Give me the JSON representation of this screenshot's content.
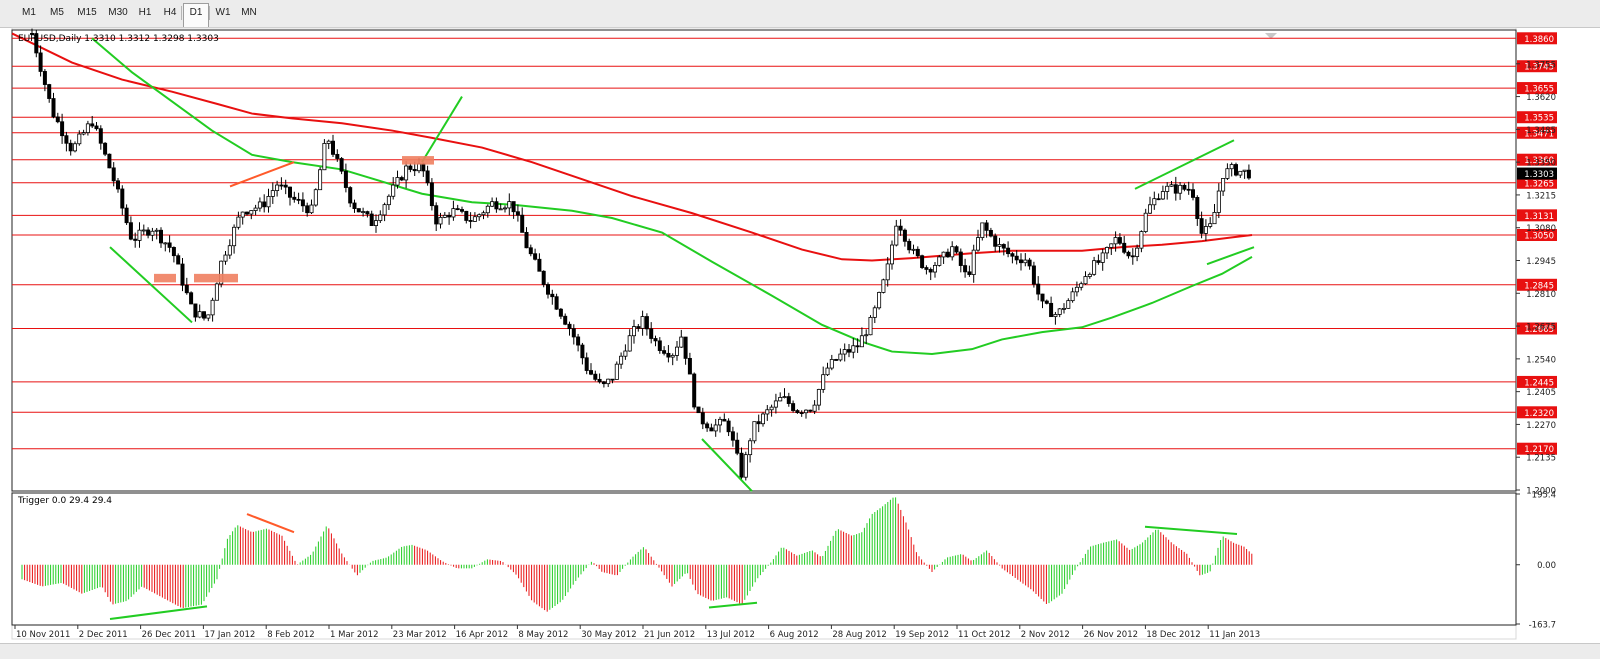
{
  "toolbar": {
    "timeframes": [
      "M1",
      "M5",
      "M15",
      "M30",
      "H1",
      "H4",
      "D1",
      "W1",
      "MN"
    ],
    "active": "D1"
  },
  "chart_header": {
    "symbol_line": "EURUSD,Daily  1.3310 1.3312 1.3298 1.3303"
  },
  "indicator_header": {
    "label": "Trigger 0.0 29.4 29.4"
  },
  "chart_data": [
    {
      "type": "candlestick",
      "symbol": "EURUSD",
      "timeframe": "Daily",
      "ohlc_last": {
        "open": 1.331,
        "high": 1.3312,
        "low": 1.3298,
        "close": 1.3303
      },
      "current_price": "1.3303",
      "y_axis_ticks": [
        "1.3755",
        "1.3620",
        "1.3485",
        "1.3350",
        "1.3215",
        "1.3080",
        "1.2945",
        "1.2810",
        "1.2675",
        "1.2540",
        "1.2405",
        "1.2270",
        "1.2135",
        "1.2000"
      ],
      "ylim": [
        1.2,
        1.389
      ],
      "x_axis_labels": [
        "10 Nov 2011",
        "2 Dec 2011",
        "26 Dec 2011",
        "17 Jan 2012",
        "8 Feb 2012",
        "1 Mar 2012",
        "23 Mar 2012",
        "16 Apr 2012",
        "8 May 2012",
        "30 May 2012",
        "21 Jun 2012",
        "13 Jul 2012",
        "6 Aug 2012",
        "28 Aug 2012",
        "19 Sep 2012",
        "11 Oct 2012",
        "2 Nov 2012",
        "26 Nov 2012",
        "18 Dec 2012",
        "11 Jan 2013"
      ],
      "horizontal_levels": [
        "1.3860",
        "1.3745",
        "1.3655",
        "1.3535",
        "1.3471",
        "1.3360",
        "1.3265",
        "1.3131",
        "1.3050",
        "1.2845",
        "1.2665",
        "1.2445",
        "1.2320",
        "1.2170"
      ],
      "moving_averages": [
        {
          "color": "#e81010",
          "points": [
            [
              0,
              1.388
            ],
            [
              60,
              1.376
            ],
            [
              110,
              1.369
            ],
            [
              160,
              1.364
            ],
            [
              205,
              1.359
            ],
            [
              240,
              1.355
            ],
            [
              280,
              1.353
            ],
            [
              330,
              1.351
            ],
            [
              380,
              1.348
            ],
            [
              420,
              1.345
            ],
            [
              470,
              1.341
            ],
            [
              520,
              1.335
            ],
            [
              570,
              1.328
            ],
            [
              620,
              1.321
            ],
            [
              680,
              1.314
            ],
            [
              740,
              1.306
            ],
            [
              790,
              1.299
            ],
            [
              830,
              1.295
            ],
            [
              860,
              1.2945
            ],
            [
              900,
              1.2955
            ],
            [
              960,
              1.2975
            ],
            [
              1000,
              1.2985
            ],
            [
              1030,
              1.2985
            ],
            [
              1070,
              1.2985
            ],
            [
              1110,
              1.3
            ],
            [
              1150,
              1.301
            ],
            [
              1190,
              1.3025
            ],
            [
              1220,
              1.304
            ],
            [
              1240,
              1.305
            ]
          ]
        },
        {
          "color": "#22cc22",
          "points": [
            [
              80,
              1.386
            ],
            [
              120,
              1.372
            ],
            [
              160,
              1.36
            ],
            [
              200,
              1.348
            ],
            [
              240,
              1.338
            ],
            [
              280,
              1.335
            ],
            [
              330,
              1.332
            ],
            [
              370,
              1.327
            ],
            [
              410,
              1.322
            ],
            [
              460,
              1.3185
            ],
            [
              500,
              1.3175
            ],
            [
              560,
              1.315
            ],
            [
              600,
              1.312
            ],
            [
              650,
              1.306
            ],
            [
              700,
              1.294
            ],
            [
              760,
              1.28
            ],
            [
              810,
              1.268
            ],
            [
              850,
              1.261
            ],
            [
              880,
              1.257
            ],
            [
              920,
              1.256
            ],
            [
              960,
              1.258
            ],
            [
              990,
              1.262
            ],
            [
              1030,
              1.265
            ],
            [
              1070,
              1.267
            ],
            [
              1100,
              1.271
            ],
            [
              1140,
              1.277
            ],
            [
              1180,
              1.284
            ],
            [
              1210,
              1.289
            ],
            [
              1240,
              1.296
            ]
          ]
        }
      ],
      "candle_path": [
        [
          20,
          1.388
        ],
        [
          40,
          1.356
        ],
        [
          60,
          1.34
        ],
        [
          80,
          1.352
        ],
        [
          100,
          1.33
        ],
        [
          120,
          1.303
        ],
        [
          140,
          1.308
        ],
        [
          160,
          1.299
        ],
        [
          180,
          1.274
        ],
        [
          195,
          1.27
        ],
        [
          210,
          1.295
        ],
        [
          230,
          1.315
        ],
        [
          250,
          1.317
        ],
        [
          265,
          1.326
        ],
        [
          280,
          1.32
        ],
        [
          300,
          1.315
        ],
        [
          315,
          1.346
        ],
        [
          325,
          1.335
        ],
        [
          340,
          1.318
        ],
        [
          360,
          1.31
        ],
        [
          380,
          1.323
        ],
        [
          395,
          1.333
        ],
        [
          410,
          1.333
        ],
        [
          425,
          1.31
        ],
        [
          440,
          1.315
        ],
        [
          460,
          1.311
        ],
        [
          480,
          1.318
        ],
        [
          500,
          1.318
        ],
        [
          515,
          1.3
        ],
        [
          530,
          1.287
        ],
        [
          545,
          1.276
        ],
        [
          560,
          1.265
        ],
        [
          575,
          1.25
        ],
        [
          590,
          1.242
        ],
        [
          600,
          1.246
        ],
        [
          615,
          1.261
        ],
        [
          630,
          1.27
        ],
        [
          645,
          1.26
        ],
        [
          660,
          1.256
        ],
        [
          670,
          1.264
        ],
        [
          685,
          1.23
        ],
        [
          700,
          1.226
        ],
        [
          715,
          1.228
        ],
        [
          730,
          1.206
        ],
        [
          740,
          1.225
        ],
        [
          755,
          1.232
        ],
        [
          770,
          1.238
        ],
        [
          785,
          1.233
        ],
        [
          800,
          1.234
        ],
        [
          815,
          1.25
        ],
        [
          830,
          1.256
        ],
        [
          845,
          1.259
        ],
        [
          860,
          1.27
        ],
        [
          875,
          1.29
        ],
        [
          885,
          1.312
        ],
        [
          900,
          1.298
        ],
        [
          915,
          1.291
        ],
        [
          930,
          1.295
        ],
        [
          940,
          1.3
        ],
        [
          955,
          1.287
        ],
        [
          970,
          1.309
        ],
        [
          985,
          1.301
        ],
        [
          1000,
          1.296
        ],
        [
          1015,
          1.295
        ],
        [
          1030,
          1.276
        ],
        [
          1045,
          1.272
        ],
        [
          1060,
          1.28
        ],
        [
          1075,
          1.29
        ],
        [
          1090,
          1.295
        ],
        [
          1105,
          1.304
        ],
        [
          1120,
          1.295
        ],
        [
          1135,
          1.315
        ],
        [
          1150,
          1.324
        ],
        [
          1165,
          1.324
        ],
        [
          1180,
          1.324
        ],
        [
          1190,
          1.305
        ],
        [
          1200,
          1.309
        ],
        [
          1210,
          1.33
        ],
        [
          1220,
          1.332
        ],
        [
          1230,
          1.331
        ],
        [
          1240,
          1.3303
        ]
      ],
      "trend_lines": [
        {
          "color": "#22cc22",
          "from": [
            98,
            1.3
          ],
          "to": [
            180,
            1.269
          ]
        },
        {
          "color": "#ff5a2a",
          "from": [
            218,
            1.325
          ],
          "to": [
            282,
            1.335
          ]
        },
        {
          "color": "#22cc22",
          "from": [
            410,
            1.335
          ],
          "to": [
            450,
            1.362
          ]
        },
        {
          "color": "#22cc22",
          "from": [
            690,
            1.221
          ],
          "to": [
            740,
            1.1995
          ]
        },
        {
          "color": "#22cc22",
          "from": [
            1123,
            1.324
          ],
          "to": [
            1222,
            1.344
          ]
        },
        {
          "color": "#22cc22",
          "from": [
            1195,
            1.293
          ],
          "to": [
            1242,
            1.3
          ]
        }
      ],
      "zones": [
        {
          "color": "#f08060",
          "x1": 142,
          "x2": 164,
          "y1": 1.289,
          "y2": 1.2855
        },
        {
          "color": "#f08060",
          "x1": 182,
          "x2": 226,
          "y1": 1.289,
          "y2": 1.2855
        },
        {
          "color": "#f08060",
          "x1": 390,
          "x2": 422,
          "y1": 1.3375,
          "y2": 1.334
        }
      ]
    },
    {
      "type": "bar",
      "name": "Trigger",
      "y_axis_ticks": [
        "195.4",
        "0.00",
        "-163.7"
      ],
      "ylim": [
        -163.7,
        195.4
      ],
      "bar_path": [
        [
          10,
          -40
        ],
        [
          30,
          -60
        ],
        [
          50,
          -50
        ],
        [
          70,
          -80
        ],
        [
          90,
          -60
        ],
        [
          100,
          -110
        ],
        [
          115,
          -100
        ],
        [
          130,
          -60
        ],
        [
          150,
          -90
        ],
        [
          170,
          -120
        ],
        [
          190,
          -110
        ],
        [
          205,
          -40
        ],
        [
          215,
          70
        ],
        [
          225,
          110
        ],
        [
          240,
          90
        ],
        [
          255,
          100
        ],
        [
          270,
          80
        ],
        [
          285,
          0
        ],
        [
          300,
          30
        ],
        [
          315,
          110
        ],
        [
          330,
          30
        ],
        [
          345,
          -30
        ],
        [
          360,
          10
        ],
        [
          375,
          20
        ],
        [
          390,
          50
        ],
        [
          400,
          55
        ],
        [
          415,
          40
        ],
        [
          430,
          10
        ],
        [
          445,
          -10
        ],
        [
          460,
          -10
        ],
        [
          475,
          15
        ],
        [
          490,
          10
        ],
        [
          505,
          -30
        ],
        [
          520,
          -100
        ],
        [
          535,
          -130
        ],
        [
          550,
          -100
        ],
        [
          565,
          -40
        ],
        [
          580,
          10
        ],
        [
          590,
          -20
        ],
        [
          605,
          -30
        ],
        [
          620,
          20
        ],
        [
          632,
          50
        ],
        [
          645,
          0
        ],
        [
          660,
          -60
        ],
        [
          675,
          -20
        ],
        [
          685,
          -80
        ],
        [
          700,
          -100
        ],
        [
          715,
          -90
        ],
        [
          730,
          -110
        ],
        [
          745,
          -40
        ],
        [
          760,
          10
        ],
        [
          770,
          50
        ],
        [
          785,
          25
        ],
        [
          800,
          40
        ],
        [
          810,
          20
        ],
        [
          825,
          100
        ],
        [
          840,
          80
        ],
        [
          850,
          90
        ],
        [
          860,
          140
        ],
        [
          870,
          160
        ],
        [
          883,
          190
        ],
        [
          895,
          110
        ],
        [
          905,
          30
        ],
        [
          920,
          -20
        ],
        [
          935,
          20
        ],
        [
          950,
          30
        ],
        [
          960,
          10
        ],
        [
          975,
          40
        ],
        [
          990,
          -10
        ],
        [
          1005,
          -40
        ],
        [
          1020,
          -70
        ],
        [
          1035,
          -110
        ],
        [
          1050,
          -80
        ],
        [
          1062,
          -20
        ],
        [
          1078,
          50
        ],
        [
          1090,
          60
        ],
        [
          1105,
          70
        ],
        [
          1118,
          40
        ],
        [
          1130,
          60
        ],
        [
          1145,
          100
        ],
        [
          1160,
          60
        ],
        [
          1175,
          30
        ],
        [
          1188,
          -30
        ],
        [
          1198,
          -20
        ],
        [
          1210,
          80
        ],
        [
          1222,
          60
        ],
        [
          1232,
          50
        ],
        [
          1242,
          25
        ]
      ],
      "trend_lines": [
        {
          "color": "#22cc22",
          "from": [
            98,
            -150
          ],
          "to": [
            195,
            -115
          ]
        },
        {
          "color": "#ff5a2a",
          "from": [
            235,
            140
          ],
          "to": [
            282,
            90
          ]
        },
        {
          "color": "#22cc22",
          "from": [
            697,
            -118
          ],
          "to": [
            745,
            -105
          ]
        },
        {
          "color": "#22cc22",
          "from": [
            1133,
            105
          ],
          "to": [
            1225,
            85
          ]
        }
      ]
    }
  ]
}
